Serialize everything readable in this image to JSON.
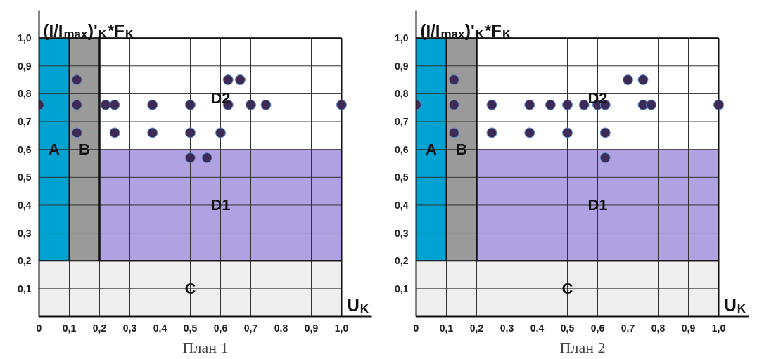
{
  "chart_data": [
    {
      "type": "scatter",
      "title": "План 1",
      "xlabel": "U$_{K}$",
      "ylabel": "(I/I$_{max}$)'$_{K}$*F$_{K}$",
      "color": "#3d2b56",
      "marker": "circle",
      "x": [
        0,
        0.125,
        0.125,
        0.125,
        0.22,
        0.25,
        0.25,
        0.375,
        0.375,
        0.5,
        0.5,
        0.5,
        0.555,
        0.6,
        0.625,
        0.665,
        0.625,
        0.7,
        0.75,
        1.0
      ],
      "values": [
        0.76,
        0.85,
        0.76,
        0.66,
        0.76,
        0.76,
        0.66,
        0.76,
        0.66,
        0.76,
        0.66,
        0.57,
        0.57,
        0.66,
        0.85,
        0.85,
        0.76,
        0.76,
        0.76,
        0.76
      ],
      "xlim": [
        0,
        1.1
      ],
      "ylim": [
        0,
        1.1
      ],
      "annotations": [
        "D2"
      ],
      "xticks": [
        {
          "value": 0,
          "label": "0"
        },
        {
          "value": 0.1,
          "label": "0,1"
        },
        {
          "value": 0.2,
          "label": "0,2"
        },
        {
          "value": 0.3,
          "label": "0,3"
        },
        {
          "value": 0.4,
          "label": "0,4"
        },
        {
          "value": 0.5,
          "label": "0,5"
        },
        {
          "value": 0.6,
          "label": "0,6"
        },
        {
          "value": 0.7,
          "label": "0,7"
        },
        {
          "value": 0.8,
          "label": "0,8"
        },
        {
          "value": 0.9,
          "label": "0,9"
        },
        {
          "value": 1.0,
          "label": "1,0"
        }
      ],
      "yticks": [
        {
          "value": 0,
          "label": null
        },
        {
          "value": 0.1,
          "label": "0,1"
        },
        {
          "value": 0.2,
          "label": "0,2"
        },
        {
          "value": 0.3,
          "label": "0,3"
        },
        {
          "value": 0.4,
          "label": "0,4"
        },
        {
          "value": 0.5,
          "label": "0,5"
        },
        {
          "value": 0.6,
          "label": "0,6"
        },
        {
          "value": 0.7,
          "label": "0,7"
        },
        {
          "value": 0.8,
          "label": "0,8"
        },
        {
          "value": 0.9,
          "label": "0,9"
        },
        {
          "value": 1.0,
          "label": "1,0"
        }
      ],
      "grid": true,
      "bands": [
        {
          "axis": "y",
          "from": 0.2,
          "to": 0.6,
          "label": "D1",
          "color": "#b0a2e2"
        },
        {
          "axis": "x",
          "from": 0,
          "to": 0.1,
          "label": "A",
          "color": "#00a2d2"
        },
        {
          "axis": "x",
          "from": 0.1,
          "to": 0.2,
          "label": "B",
          "color": "#9a9a9a"
        },
        {
          "axis": "y",
          "from": 0,
          "to": 0.2,
          "label": "C",
          "color": "#efefef"
        }
      ]
    },
    {
      "type": "scatter",
      "title": "План 2",
      "xlabel": "U$_{K}$",
      "ylabel": "(I/I$_{max}$)'$_{K}$*F$_{K}$",
      "color": "#3d2b56",
      "marker": "circle",
      "x": [
        0,
        0.125,
        0.125,
        0.125,
        0.25,
        0.25,
        0.375,
        0.375,
        0.444,
        0.5,
        0.5,
        0.555,
        0.6,
        0.625,
        0.625,
        0.625,
        0.7,
        0.75,
        0.75,
        0.777,
        1.0
      ],
      "values": [
        0.76,
        0.85,
        0.76,
        0.66,
        0.76,
        0.66,
        0.76,
        0.66,
        0.76,
        0.76,
        0.66,
        0.76,
        0.76,
        0.76,
        0.66,
        0.57,
        0.85,
        0.85,
        0.76,
        0.76,
        0.76
      ],
      "xlim": [
        0,
        1.1
      ],
      "ylim": [
        0,
        1.1
      ],
      "annotations": [
        "D2"
      ],
      "xticks": [
        {
          "value": 0,
          "label": "0"
        },
        {
          "value": 0.1,
          "label": "0,1"
        },
        {
          "value": 0.2,
          "label": "0,2"
        },
        {
          "value": 0.3,
          "label": "0,3"
        },
        {
          "value": 0.4,
          "label": "0,4"
        },
        {
          "value": 0.5,
          "label": "0,5"
        },
        {
          "value": 0.6,
          "label": "0,6"
        },
        {
          "value": 0.7,
          "label": "0,7"
        },
        {
          "value": 0.8,
          "label": "0,8"
        },
        {
          "value": 0.9,
          "label": "0,9"
        },
        {
          "value": 1.0,
          "label": "1,0"
        }
      ],
      "yticks": [
        {
          "value": 0,
          "label": null
        },
        {
          "value": 0.1,
          "label": "0,1"
        },
        {
          "value": 0.2,
          "label": "0,2"
        },
        {
          "value": 0.3,
          "label": "0,3"
        },
        {
          "value": 0.4,
          "label": "0,4"
        },
        {
          "value": 0.5,
          "label": "0,5"
        },
        {
          "value": 0.6,
          "label": "0,6"
        },
        {
          "value": 0.7,
          "label": "0,7"
        },
        {
          "value": 0.8,
          "label": "0,8"
        },
        {
          "value": 0.9,
          "label": "0,9"
        },
        {
          "value": 1.0,
          "label": "1,0"
        }
      ],
      "grid": true,
      "bands": [
        {
          "axis": "y",
          "from": 0.2,
          "to": 0.6,
          "label": "D1",
          "color": "#b0a2e2"
        },
        {
          "axis": "x",
          "from": 0,
          "to": 0.1,
          "label": "A",
          "color": "#00a2d2"
        },
        {
          "axis": "x",
          "from": 0.1,
          "to": 0.2,
          "label": "B",
          "color": "#9a9a9a"
        },
        {
          "axis": "y",
          "from": 0,
          "to": 0.2,
          "label": "C",
          "color": "#efefef"
        }
      ]
    }
  ]
}
